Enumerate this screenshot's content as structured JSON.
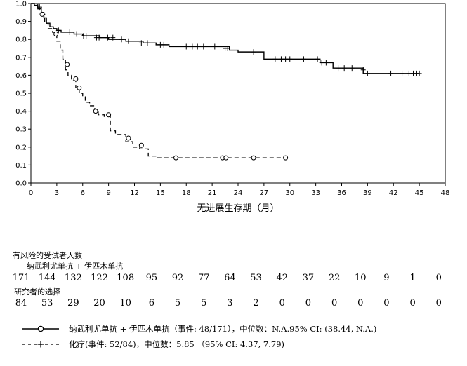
{
  "chart_data": {
    "type": "line",
    "xlabel": "无进展生存期（月）",
    "ylabel": "",
    "xlim": [
      0,
      48
    ],
    "ylim": [
      0,
      1.0
    ],
    "xticks": [
      0,
      3,
      6,
      9,
      12,
      15,
      18,
      21,
      24,
      27,
      30,
      33,
      36,
      39,
      42,
      45,
      48
    ],
    "yticks": [
      0.0,
      0.1,
      0.2,
      0.3,
      0.4,
      0.5,
      0.6,
      0.7,
      0.8,
      0.9,
      1.0
    ],
    "ytick_labels": [
      "0.0",
      "0.1",
      "0.2",
      "0.3",
      "0.4",
      "0.5",
      "0.6",
      "0.7",
      "0.8",
      "0.9",
      "1.0"
    ],
    "grid": false,
    "series": [
      {
        "name": "纳武利尤单抗 + 伊匹木单抗",
        "line_style": "solid",
        "censor_marker": "+",
        "x": [
          0,
          0.4,
          0.8,
          1.2,
          1.5,
          1.8,
          2.2,
          2.6,
          3.0,
          3.5,
          4.0,
          5.0,
          6.0,
          8.0,
          9.0,
          11.0,
          13.0,
          14.5,
          16.0,
          23.0,
          24.0,
          27.0,
          33.5,
          35.0,
          38.5,
          45.0
        ],
        "y": [
          1.0,
          0.99,
          0.97,
          0.95,
          0.92,
          0.89,
          0.87,
          0.86,
          0.85,
          0.84,
          0.84,
          0.83,
          0.82,
          0.81,
          0.8,
          0.79,
          0.78,
          0.77,
          0.76,
          0.74,
          0.73,
          0.69,
          0.67,
          0.64,
          0.61,
          0.61
        ],
        "censored": [
          [
            1.0,
            0.98
          ],
          [
            3.2,
            0.85
          ],
          [
            4.5,
            0.84
          ],
          [
            5.3,
            0.83
          ],
          [
            6.1,
            0.82
          ],
          [
            6.4,
            0.82
          ],
          [
            7.6,
            0.81
          ],
          [
            7.9,
            0.81
          ],
          [
            8.9,
            0.81
          ],
          [
            9.5,
            0.81
          ],
          [
            10.5,
            0.8
          ],
          [
            11.3,
            0.79
          ],
          [
            12.8,
            0.78
          ],
          [
            13.5,
            0.78
          ],
          [
            15.0,
            0.77
          ],
          [
            15.4,
            0.77
          ],
          [
            18.0,
            0.76
          ],
          [
            18.7,
            0.76
          ],
          [
            19.3,
            0.76
          ],
          [
            20.0,
            0.76
          ],
          [
            21.3,
            0.76
          ],
          [
            22.5,
            0.75
          ],
          [
            22.8,
            0.75
          ],
          [
            25.8,
            0.73
          ],
          [
            28.3,
            0.69
          ],
          [
            29.0,
            0.69
          ],
          [
            29.5,
            0.69
          ],
          [
            30.0,
            0.69
          ],
          [
            31.6,
            0.69
          ],
          [
            33.2,
            0.69
          ],
          [
            33.7,
            0.67
          ],
          [
            34.2,
            0.67
          ],
          [
            35.6,
            0.64
          ],
          [
            36.3,
            0.64
          ],
          [
            37.2,
            0.64
          ],
          [
            38.5,
            0.63
          ],
          [
            39.0,
            0.61
          ],
          [
            41.7,
            0.61
          ],
          [
            43.0,
            0.61
          ],
          [
            43.8,
            0.61
          ],
          [
            44.3,
            0.61
          ],
          [
            44.7,
            0.61
          ],
          [
            45.0,
            0.61
          ]
        ]
      },
      {
        "name": "化疗",
        "line_style": "dashed",
        "censor_marker": "o",
        "x": [
          0,
          0.8,
          1.2,
          1.6,
          2.0,
          2.5,
          3.0,
          3.4,
          3.7,
          4.0,
          4.3,
          4.7,
          5.2,
          5.6,
          6.0,
          6.3,
          6.8,
          7.4,
          7.8,
          8.5,
          9.2,
          9.8,
          11.0,
          11.8,
          12.6,
          13.6,
          14.6,
          15.2,
          29.5
        ],
        "y": [
          1.0,
          0.98,
          0.94,
          0.89,
          0.86,
          0.84,
          0.79,
          0.74,
          0.69,
          0.63,
          0.6,
          0.57,
          0.53,
          0.5,
          0.48,
          0.45,
          0.43,
          0.4,
          0.38,
          0.37,
          0.29,
          0.27,
          0.23,
          0.2,
          0.19,
          0.15,
          0.14,
          0.14,
          0.14
        ],
        "censored": [
          [
            1.3,
            0.94
          ],
          [
            2.9,
            0.83
          ],
          [
            4.2,
            0.66
          ],
          [
            5.2,
            0.58
          ],
          [
            5.6,
            0.53
          ],
          [
            7.5,
            0.4
          ],
          [
            9.0,
            0.38
          ],
          [
            11.3,
            0.25
          ],
          [
            12.8,
            0.21
          ],
          [
            16.8,
            0.14
          ],
          [
            22.2,
            0.14
          ],
          [
            22.6,
            0.14
          ],
          [
            25.8,
            0.14
          ],
          [
            29.5,
            0.14
          ]
        ]
      }
    ]
  },
  "risk_table": {
    "title": "有风险的受试者人数",
    "groups": [
      {
        "label": "纳武利尤单抗 + 伊匹木单抗",
        "counts": [
          "171",
          "144",
          "132",
          "122",
          "108",
          "95",
          "92",
          "77",
          "64",
          "53",
          "42",
          "37",
          "22",
          "10",
          "9",
          "1",
          "0"
        ]
      },
      {
        "label": "研究者的选择",
        "counts": [
          "84",
          "53",
          "29",
          "20",
          "10",
          "6",
          "5",
          "5",
          "3",
          "2",
          "0",
          "0",
          "0",
          "0",
          "0",
          "0",
          "0"
        ]
      }
    ]
  },
  "legend": [
    {
      "text": "纳武利尤单抗 + 伊匹木单抗（事件: 48/171），中位数：N.A.95% CI: (38.44, N.A.)"
    },
    {
      "text": "化疗(事件: 52/84)，中位数：5.85 （95% CI: 4.37, 7.79)"
    }
  ],
  "colors": {
    "line": "#000000",
    "frame": "#000000",
    "background": "#ffffff"
  }
}
